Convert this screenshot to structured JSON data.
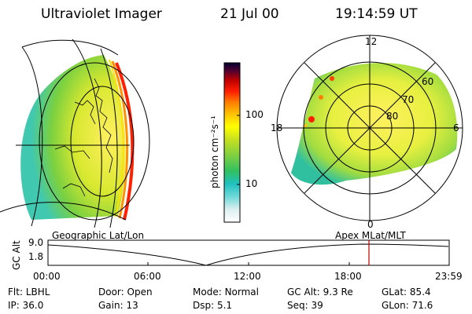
{
  "header": {
    "instrument": "Ultraviolet Imager",
    "date": "21 Jul 00",
    "time": "19:14:59 UT"
  },
  "colorbar": {
    "unit_label": "photon cm⁻²s⁻¹",
    "tick_labels": [
      "100",
      "10"
    ],
    "colors": [
      "#ffffff",
      "#dceff0",
      "#6fd8d8",
      "#20c0c0",
      "#30c060",
      "#80d040",
      "#c8e020",
      "#ffff00",
      "#ffc000",
      "#ff8000",
      "#ff2000",
      "#c00000",
      "#500030",
      "#000030"
    ]
  },
  "left_panel": {
    "caption": "Geographic Lat/Lon"
  },
  "right_panel": {
    "caption": "Apex MLat/MLT",
    "mlt_labels": [
      "12",
      "18",
      "6",
      "0"
    ],
    "mlat_labels": [
      "60",
      "70",
      "80"
    ]
  },
  "altitude_plot": {
    "axis_label": "GC Alt",
    "y_ticks": [
      "9.0",
      "1.8"
    ],
    "x_ticks": [
      "00:00",
      "06:00",
      "12:00",
      "18:00",
      "23:59"
    ],
    "marker_color": "#c00000"
  },
  "status": {
    "row1": [
      {
        "label": "Flt:",
        "value": "LBHL"
      },
      {
        "label": "Door:",
        "value": "Open"
      },
      {
        "label": "Mode:",
        "value": "Normal"
      },
      {
        "label": "GC Alt:",
        "value": "9.3 Re"
      },
      {
        "label": "GLat:",
        "value": "85.4"
      }
    ],
    "row2": [
      {
        "label": "IP:",
        "value": "36.0"
      },
      {
        "label": "Gain:",
        "value": "13"
      },
      {
        "label": "Dsp:",
        "value": "5.1"
      },
      {
        "label": "Seq:",
        "value": "39"
      },
      {
        "label": "GLon:",
        "value": "71.6"
      }
    ]
  }
}
